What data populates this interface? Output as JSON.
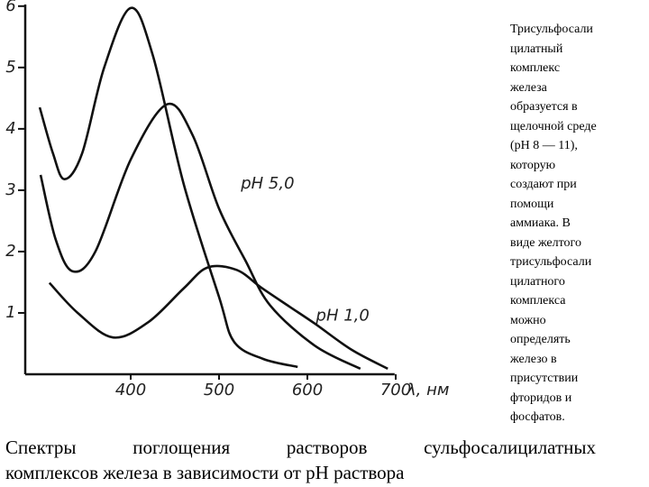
{
  "chart_data": {
    "type": "line",
    "x_label": "λ, нм",
    "xlim": [
      290,
      760
    ],
    "xticks": [
      400,
      500,
      600,
      700
    ],
    "ylim": [
      0,
      6.1
    ],
    "yticks": [
      1,
      2,
      3,
      4,
      5,
      6
    ],
    "color": "#111111",
    "series": [
      {
        "x": [
          297,
          312,
          325,
          345,
          370,
          400,
          425,
          460,
          500,
          517,
          550,
          589
        ],
        "values": [
          4.35,
          3.6,
          3.18,
          3.6,
          5.0,
          5.97,
          5.2,
          3.1,
          1.26,
          0.53,
          0.25,
          0.12
        ]
      },
      {
        "x": [
          298,
          315,
          334,
          360,
          400,
          441,
          470,
          500,
          530,
          558,
          609,
          660
        ],
        "values": [
          3.25,
          2.2,
          1.68,
          2.0,
          3.5,
          4.4,
          3.9,
          2.7,
          1.85,
          1.12,
          0.46,
          0.09
        ]
      },
      {
        "x": [
          308,
          340,
          380,
          420,
          460,
          487,
          520,
          548,
          580,
          609,
          650,
          691
        ],
        "values": [
          1.49,
          1.0,
          0.6,
          0.85,
          1.4,
          1.74,
          1.7,
          1.41,
          1.1,
          0.82,
          0.4,
          0.09
        ]
      }
    ],
    "annotations": [
      {
        "text": "pH 5,0",
        "x": 555,
        "y": 3.1
      },
      {
        "text": "pH 1,0",
        "x": 640,
        "y": 0.95
      }
    ]
  },
  "side_text": {
    "lines": [
      "Трисульфосали",
      "цилатный",
      "комплекс",
      "железа",
      "образуется в",
      "щелочной среде",
      "(рН 8 — 11),",
      "которую",
      "создают при",
      "помощи",
      "аммиака. В",
      "виде желтого",
      "трисульфосали",
      "цилатного",
      "комплекса",
      "можно",
      "определять",
      "железо в",
      "присутствии",
      "фторидов и",
      "фосфатов."
    ]
  },
  "caption": {
    "lines": [
      "Спектры поглощения растворов сульфосалицилатных",
      "комплексов железа в зависимости  от рН раствора"
    ]
  }
}
